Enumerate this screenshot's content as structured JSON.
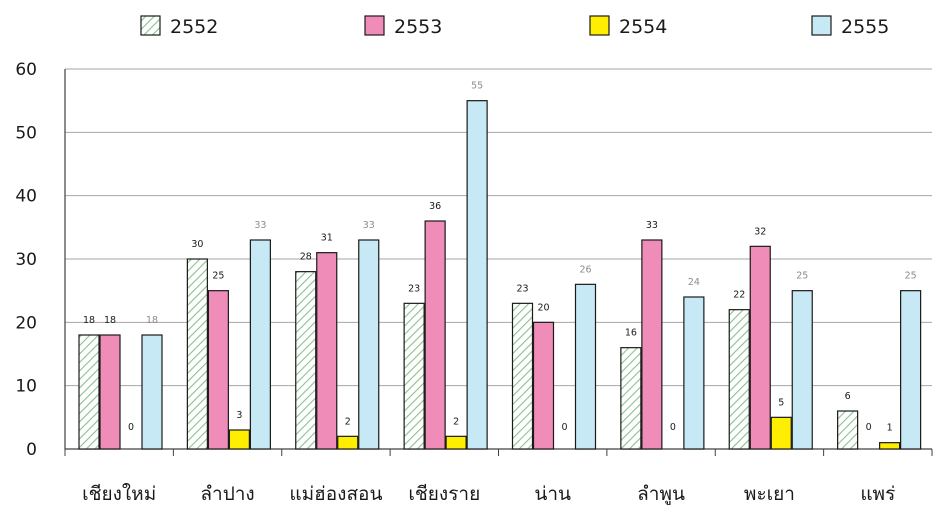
{
  "chart_data": {
    "type": "bar",
    "categories": [
      "เชียงใหม่",
      "ลำปาง",
      "แม่ฮ่องสอน",
      "เชียงราย",
      "น่าน",
      "ลำพูน",
      "พะเยา",
      "แพร่"
    ],
    "series": [
      {
        "name": "2552",
        "values": [
          18,
          30,
          28,
          23,
          23,
          16,
          22,
          6
        ],
        "fill": "hatch-green"
      },
      {
        "name": "2553",
        "values": [
          18,
          25,
          31,
          36,
          20,
          33,
          32,
          0
        ],
        "fill": "#f08cb8"
      },
      {
        "name": "2554",
        "values": [
          0,
          3,
          2,
          2,
          0,
          0,
          5,
          1
        ],
        "fill": "#ffee00"
      },
      {
        "name": "2555",
        "values": [
          18,
          33,
          33,
          55,
          26,
          24,
          25,
          25
        ],
        "fill": "#c7e8f5"
      }
    ],
    "ylim": [
      0,
      60
    ],
    "yticks": [
      0,
      10,
      20,
      30,
      40,
      50,
      60
    ],
    "grid": true,
    "legend_position": "top",
    "colors": {
      "bar_stroke": "#1a1a1a",
      "grid": "#a6a6a6",
      "axis": "#404040",
      "hatch_line": "#8cc08c",
      "hatch_bg": "#ffffff",
      "label_dark": "#1a1a1a",
      "label_light": "#8c8c8c"
    }
  }
}
